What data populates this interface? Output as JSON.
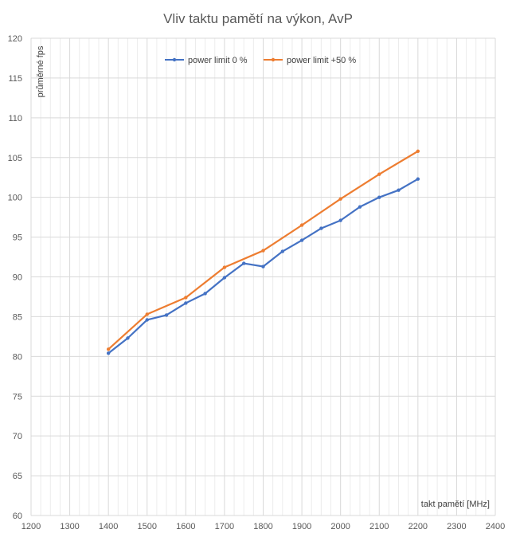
{
  "chart_data": {
    "type": "line",
    "title": "Vliv taktu pamětí na výkon, AvP",
    "xlabel": "takt pamětí  [MHz]",
    "ylabel": "průměrné fps",
    "xlim": [
      1200,
      2400
    ],
    "ylim": [
      60,
      120
    ],
    "x_ticks": [
      1200,
      1300,
      1400,
      1500,
      1600,
      1700,
      1800,
      1900,
      2000,
      2100,
      2200,
      2300,
      2400
    ],
    "y_ticks": [
      60,
      65,
      70,
      75,
      80,
      85,
      90,
      95,
      100,
      105,
      110,
      115,
      120
    ],
    "grid": true,
    "legend_position": "top",
    "series": [
      {
        "name": "power limit 0 %",
        "color": "#4472C4",
        "x": [
          1400,
          1450,
          1500,
          1550,
          1600,
          1650,
          1700,
          1750,
          1800,
          1850,
          1900,
          1950,
          2000,
          2050,
          2100,
          2150,
          2200
        ],
        "values": [
          80.4,
          82.3,
          84.6,
          85.2,
          86.7,
          87.9,
          89.9,
          91.7,
          91.3,
          93.2,
          94.6,
          96.1,
          97.1,
          98.8,
          100.0,
          100.9,
          102.3
        ]
      },
      {
        "name": "power limit +50 %",
        "color": "#ED7D31",
        "x": [
          1400,
          1500,
          1600,
          1700,
          1800,
          1900,
          2000,
          2100,
          2200
        ],
        "values": [
          80.9,
          85.3,
          87.4,
          91.2,
          93.3,
          96.5,
          99.8,
          102.9,
          105.8
        ]
      }
    ]
  }
}
